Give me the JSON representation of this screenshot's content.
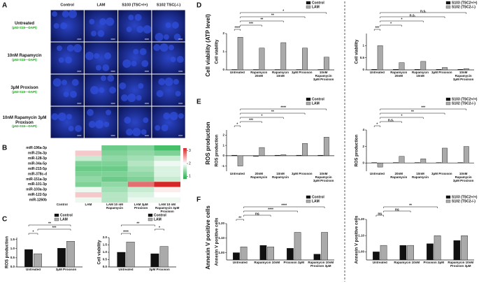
{
  "panel_labels": [
    "A",
    "B",
    "C",
    "D",
    "E",
    "F"
  ],
  "outer_labels": {
    "d": "Cell viability (ATP level)",
    "e": "ROS production",
    "f": "Annexin V positive cells"
  },
  "panel_a": {
    "columns": [
      "Control",
      "LAM",
      "S103 (TSC+/+)",
      "S102 TSC(-/-)"
    ],
    "rows": [
      {
        "label": "Untreated",
        "stain": "(p53-S15—DAPI)"
      },
      {
        "label": "10nM Rapamycin",
        "stain": "(p53-S15—DAPI)"
      },
      {
        "label": "3μM Proxison",
        "stain": "(p53-S15—DAPI)"
      },
      {
        "label": "10nM Rapamycin 3μM Proxison",
        "stain": "(p53-S15—DAPI)"
      }
    ]
  },
  "chart_data": [
    {
      "type": "heatmap",
      "rows": [
        "miR-196a-3p",
        "miR-23a-3p",
        "miR-128-3p",
        "miR-34a-5p",
        "miR-215-5p",
        "miR-378c-d",
        "miR-151a-3p",
        "miR-101-3p",
        "miR-103a-3p",
        "miR-122-5p",
        "miR-1260b"
      ],
      "columns": [
        "Control",
        "LAM",
        "LAM 10 nM Rapamycin",
        "LAM 3μM Proxison",
        "LAM 10 nM Rapamycin 3μM Proxison"
      ],
      "values": [
        [
          2,
          2.0,
          1.2,
          1.3,
          1.0
        ],
        [
          2,
          2.3,
          1.3,
          1.4,
          1.3
        ],
        [
          2,
          1.7,
          1.4,
          1.5,
          1.7
        ],
        [
          2,
          1.3,
          1.3,
          1.6,
          1.9
        ],
        [
          2,
          1.2,
          1.2,
          1.5,
          1.8
        ],
        [
          2,
          1.3,
          1.3,
          1.4,
          1.8
        ],
        [
          2,
          1.4,
          1.2,
          1.3,
          1.7
        ],
        [
          2,
          1.3,
          1.4,
          2.8,
          3.2
        ],
        [
          2,
          1.9,
          1.5,
          1.7,
          2.1
        ],
        [
          2,
          2.3,
          1.6,
          1.8,
          2.0
        ],
        [
          2,
          1.9,
          1.6,
          1.9,
          1.9
        ]
      ],
      "zlim": [
        0.8,
        3.2
      ],
      "zticks": [
        3,
        2,
        1
      ]
    },
    {
      "type": "bar",
      "y_label": "ROS production",
      "categories": [
        "Untreated",
        "3μM Proxison"
      ],
      "series": [
        {
          "name": "Control",
          "color": "#111111",
          "values": [
            0.95,
            1.02
          ]
        },
        {
          "name": "LAM",
          "color": "#aaaaaa",
          "values": [
            0.72,
            1.4
          ]
        }
      ],
      "ylim": [
        0,
        1.6
      ],
      "yticks": [
        {
          "value": 0,
          "label": "0.0"
        },
        {
          "value": 0.5,
          "label": "0.5"
        },
        {
          "value": 1,
          "label": "1.0"
        },
        {
          "value": 1.5,
          "label": "1.5"
        }
      ],
      "legend": "upper right",
      "comparisons": [
        {
          "bars": [
            0,
            1
          ],
          "label": "*"
        },
        {
          "bars": [
            1,
            3
          ],
          "label": "***"
        },
        {
          "bars": [
            0,
            3
          ],
          "label": "**"
        }
      ]
    },
    {
      "type": "bar",
      "y_label": "Cell viability",
      "categories": [
        "Untreated",
        "3μM Proxison"
      ],
      "series": [
        {
          "name": "Control",
          "color": "#111111",
          "values": [
            1.0,
            0.9
          ]
        },
        {
          "name": "LAM",
          "color": "#aaaaaa",
          "values": [
            1.7,
            1.4
          ]
        }
      ],
      "ylim": [
        0,
        2
      ],
      "yticks": [
        {
          "value": 0,
          "label": "0.0"
        },
        {
          "value": 0.5,
          "label": "0.5"
        },
        {
          "value": 1,
          "label": "1.0"
        },
        {
          "value": 1.5,
          "label": "1.5"
        },
        {
          "value": 2,
          "label": "2.0"
        }
      ],
      "legend": "upper right",
      "comparisons": [
        {
          "bars": [
            0,
            1
          ],
          "label": "****"
        },
        {
          "bars": [
            2,
            3
          ],
          "label": "*"
        },
        {
          "bars": [
            0,
            2
          ],
          "label": "**"
        }
      ]
    },
    {
      "type": "bar",
      "y_label": "Cell viability",
      "categories": [
        "Untreated",
        "Rapamycin 20nM",
        "Rapamycin 10nM",
        "3μM Proxison",
        "10nM Rapamycin 3μM Proxison"
      ],
      "series": [
        {
          "name": "Control",
          "color": "#111111",
          "values": [
            0.02,
            0.02,
            0.02,
            0.02,
            0.02
          ]
        },
        {
          "name": "LAM",
          "color": "#aaaaaa",
          "values": [
            1.8,
            1.2,
            1.5,
            1.2,
            0.7
          ]
        }
      ],
      "ylim": [
        0,
        2
      ],
      "yticks": [
        0,
        1,
        2
      ],
      "legend": "upper right",
      "comparisons": [
        {
          "bars": [
            0,
            1
          ],
          "label": "****"
        },
        {
          "bars": [
            1,
            3
          ],
          "label": "***"
        },
        {
          "bars": [
            1,
            5
          ],
          "label": "**"
        },
        {
          "bars": [
            1,
            7
          ],
          "label": "**"
        },
        {
          "bars": [
            1,
            9
          ],
          "label": "*"
        }
      ]
    },
    {
      "type": "bar",
      "y_label": "Cell viability",
      "categories": [
        "Untreated",
        "Rapamycin 20nM",
        "Rapamycin 10nM",
        "3μM Proxison",
        "10nM Rapamycin 3μM Proxison"
      ],
      "series": [
        {
          "name": "S103 (TSC2+/+)",
          "color": "#111111",
          "values": [
            0.02,
            0.02,
            0.02,
            0.02,
            0.02
          ]
        },
        {
          "name": "S102 (TSC2-/-)",
          "color": "#aaaaaa",
          "values": [
            1.0,
            0.3,
            0.35,
            0.1,
            0.05
          ]
        }
      ],
      "ylim": [
        0,
        1.5
      ],
      "yticks": [
        0,
        0.5,
        1
      ],
      "legend": "upper right",
      "comparisons": [
        {
          "bars": [
            0,
            1
          ],
          "label": "***"
        },
        {
          "bars": [
            1,
            3
          ],
          "label": "*"
        },
        {
          "bars": [
            1,
            5
          ],
          "label": "*"
        },
        {
          "bars": [
            1,
            7
          ],
          "label": "n.s."
        },
        {
          "bars": [
            1,
            9
          ],
          "label": "n.s."
        }
      ]
    },
    {
      "type": "bar",
      "y_label": "ROS production",
      "categories": [
        "Untreated",
        "20nM Rapamycin",
        "10nM Rapamycin",
        "3μM Proxison",
        "10nM Rapamycin 3μM Proxison"
      ],
      "series": [
        {
          "name": "Control",
          "color": "#111111",
          "values": [
            0.05,
            -0.05,
            0.05,
            0.05,
            0.05
          ]
        },
        {
          "name": "LAM",
          "color": "#aaaaaa",
          "values": [
            -1.0,
            0.8,
            0.1,
            1.2,
            1.8
          ]
        }
      ],
      "ylim": [
        -1.5,
        2.5
      ],
      "yticks": [
        -1,
        0,
        1,
        2
      ],
      "legend": "upper right",
      "comparisons": [
        {
          "bars": [
            0,
            1
          ],
          "label": "*"
        },
        {
          "bars": [
            1,
            3
          ],
          "label": "***"
        },
        {
          "bars": [
            1,
            5
          ],
          "label": "*"
        },
        {
          "bars": [
            1,
            7
          ],
          "label": "**"
        },
        {
          "bars": [
            1,
            9
          ],
          "label": "****"
        }
      ]
    },
    {
      "type": "bar",
      "y_label": "ROS production",
      "categories": [
        "Untreated",
        "20nM Rapamycin",
        "10nM Rapamycin",
        "3μM Proxison",
        "10nM Rapamycin 3μM Proxison"
      ],
      "series": [
        {
          "name": "S103 (TSC2+/+)",
          "color": "#111111",
          "values": [
            0.05,
            0.05,
            0.05,
            0.05,
            0.05
          ]
        },
        {
          "name": "S102 (TSC2-/-)",
          "color": "#aaaaaa",
          "values": [
            -0.5,
            0.8,
            0.5,
            1.8,
            2.0
          ]
        }
      ],
      "ylim": [
        -1,
        4
      ],
      "yticks": [
        0,
        2,
        4
      ],
      "legend": "upper right",
      "comparisons": [
        {
          "bars": [
            0,
            1
          ],
          "label": "*"
        },
        {
          "bars": [
            1,
            3
          ],
          "label": "n.s."
        },
        {
          "bars": [
            1,
            5
          ],
          "label": "*"
        },
        {
          "bars": [
            1,
            7
          ],
          "label": "**"
        },
        {
          "bars": [
            1,
            9
          ],
          "label": "***"
        }
      ]
    },
    {
      "type": "bar",
      "y_label": "Annexin V positive cells",
      "categories": [
        "Untreated",
        "Rapamycin 10nM",
        "Proxison 3μM",
        "Rapamycin 10nM Proxison 3μM"
      ],
      "series": [
        {
          "name": "Control",
          "color": "#111111",
          "values": [
            1.0,
            1.05,
            1.03,
            0.99
          ]
        },
        {
          "name": "LAM",
          "color": "#aaaaaa",
          "values": [
            1.04,
            1.04,
            1.14,
            1.14
          ]
        }
      ],
      "ylim": [
        0.95,
        1.2
      ],
      "yticks": [
        {
          "value": 1,
          "label": "1.00"
        },
        {
          "value": 1.1,
          "label": "1.10"
        },
        {
          "value": 1.2,
          "label": "1.20"
        }
      ],
      "legend": "upper right",
      "comparisons": [
        {
          "bars": [
            0,
            1
          ],
          "label": "**"
        },
        {
          "bars": [
            1,
            3
          ],
          "label": "ns"
        },
        {
          "bars": [
            1,
            5
          ],
          "label": "****"
        },
        {
          "bars": [
            1,
            7
          ],
          "label": "****"
        }
      ]
    },
    {
      "type": "bar",
      "y_label": "Annexin V positive cells",
      "categories": [
        "Untreated",
        "Rapamycin 10nM",
        "Proxison 3μM",
        "Rapamycin 10nM Proxison 3μM"
      ],
      "series": [
        {
          "name": "S103 (TSC2+/+)",
          "color": "#111111",
          "values": [
            1.0,
            1.04,
            1.05,
            1.07
          ]
        },
        {
          "name": "S102 (TSC2-/-)",
          "color": "#aaaaaa",
          "values": [
            1.04,
            1.04,
            1.1,
            1.1
          ]
        }
      ],
      "ylim": [
        0.95,
        1.2
      ],
      "yticks": [
        {
          "value": 1,
          "label": "1.00"
        },
        {
          "value": 1.1,
          "label": "1.10"
        },
        {
          "value": 1.2,
          "label": "1.20"
        }
      ],
      "legend": "upper right",
      "comparisons": [
        {
          "bars": [
            0,
            1
          ],
          "label": "ns"
        },
        {
          "bars": [
            1,
            3
          ],
          "label": "ns"
        },
        {
          "bars": [
            1,
            5
          ],
          "label": "**"
        }
      ]
    }
  ]
}
